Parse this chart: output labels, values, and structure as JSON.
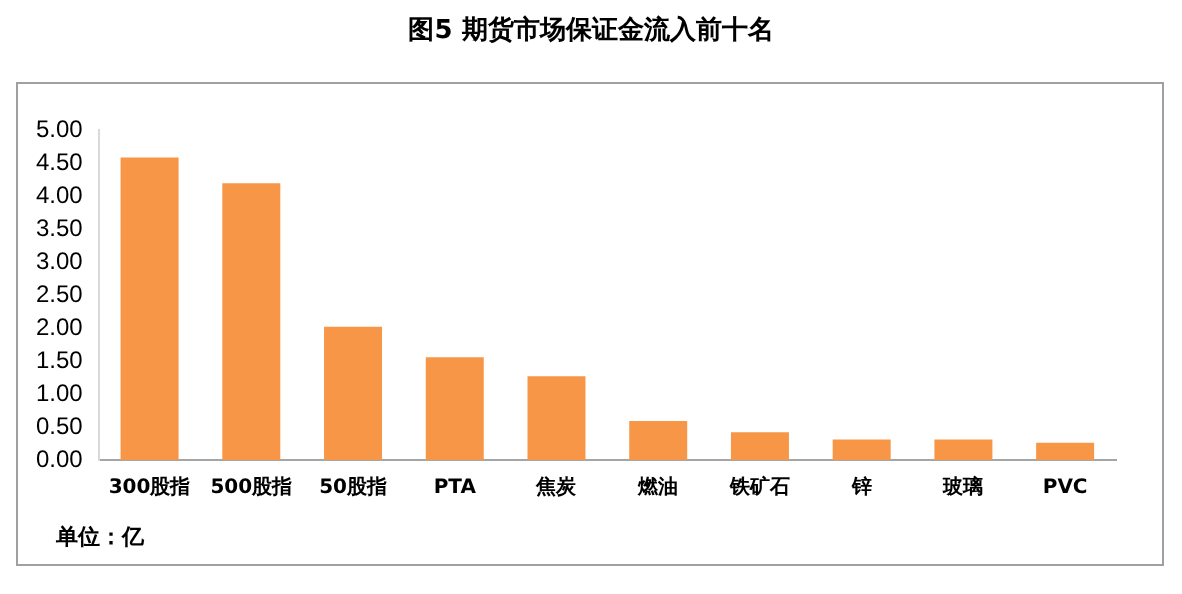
{
  "chart_data": {
    "type": "bar",
    "title": "图5 期货市场保证金流入前十名",
    "categories": [
      "300股指",
      "500股指",
      "50股指",
      "PTA",
      "焦炭",
      "燃油",
      "铁矿石",
      "锌",
      "玻璃",
      "PVC"
    ],
    "values": [
      4.59,
      4.2,
      2.02,
      1.56,
      1.27,
      0.59,
      0.42,
      0.31,
      0.31,
      0.26
    ],
    "color": "#f79646",
    "ylim": [
      0,
      5
    ],
    "yticks": [
      {
        "value": 0,
        "label": "0.00"
      },
      {
        "value": 0.5,
        "label": "0.50"
      },
      {
        "value": 1,
        "label": "1.00"
      },
      {
        "value": 1.5,
        "label": "1.50"
      },
      {
        "value": 2,
        "label": "2.00"
      },
      {
        "value": 2.5,
        "label": "2.50"
      },
      {
        "value": 3,
        "label": "3.00"
      },
      {
        "value": 3.5,
        "label": "3.50"
      },
      {
        "value": 4,
        "label": "4.00"
      },
      {
        "value": 4.5,
        "label": "4.50"
      },
      {
        "value": 5,
        "label": "5.00"
      }
    ],
    "grid": false,
    "annotations": [
      "单位：亿"
    ]
  }
}
